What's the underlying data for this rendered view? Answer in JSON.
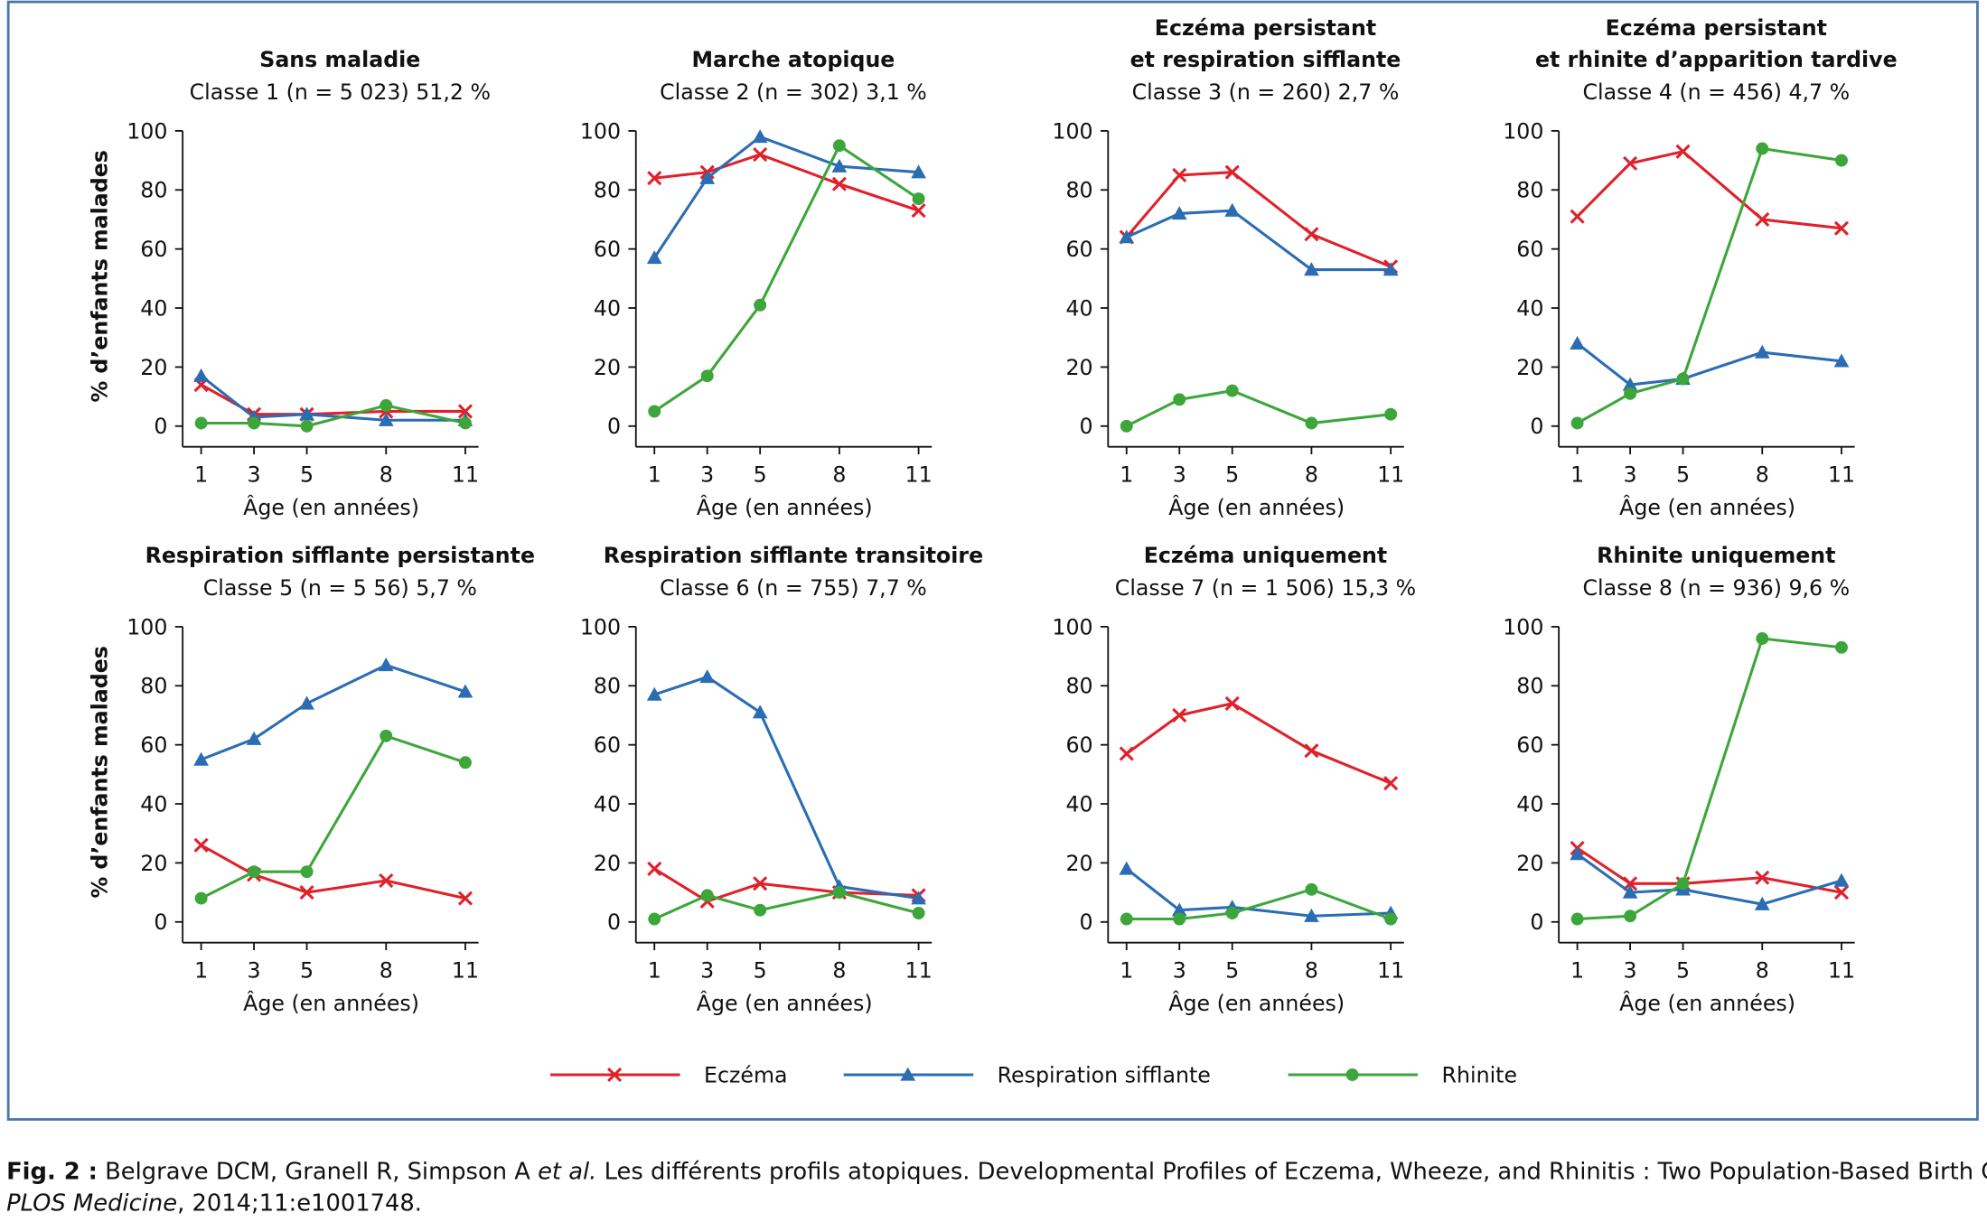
{
  "chart_data": [
    {
      "type": "line",
      "title": [
        "Sans maladie"
      ],
      "subtitle": "Classe 1 (n = 5 023) 51,2 %",
      "x": [
        1,
        3,
        5,
        8,
        11
      ],
      "xticks": [
        1,
        3,
        5,
        8,
        11
      ],
      "xlim": [
        0.3,
        11.5
      ],
      "ylim": [
        -7,
        100
      ],
      "yticks": [
        0,
        20,
        40,
        60,
        80,
        100
      ],
      "xlabel": "Âge (en années)",
      "ylabel": "% d’enfants malades",
      "series": [
        {
          "name": "Eczéma",
          "color": "#e0202a",
          "marker": "x",
          "values": [
            14,
            4,
            4,
            5,
            5
          ]
        },
        {
          "name": "Respiration sifflante",
          "color": "#2a6db3",
          "marker": "triangle",
          "values": [
            17,
            3,
            4,
            2,
            2
          ]
        },
        {
          "name": "Rhinite",
          "color": "#3da63a",
          "marker": "circle",
          "values": [
            1,
            1,
            0,
            7,
            1
          ]
        }
      ]
    },
    {
      "type": "line",
      "title": [
        "Marche atopique"
      ],
      "subtitle": "Classe 2 (n = 302) 3,1 %",
      "x": [
        1,
        3,
        5,
        8,
        11
      ],
      "xticks": [
        1,
        3,
        5,
        8,
        11
      ],
      "xlim": [
        0.3,
        11.5
      ],
      "ylim": [
        -7,
        100
      ],
      "yticks": [
        0,
        20,
        40,
        60,
        80,
        100
      ],
      "xlabel": "Âge (en années)",
      "series": [
        {
          "color": "#e0202a",
          "marker": "x",
          "values": [
            84,
            86,
            92,
            82,
            73
          ]
        },
        {
          "color": "#2a6db3",
          "marker": "triangle",
          "values": [
            57,
            84,
            98,
            88,
            86
          ]
        },
        {
          "color": "#3da63a",
          "marker": "circle",
          "values": [
            5,
            17,
            41,
            95,
            77
          ]
        }
      ]
    },
    {
      "type": "line",
      "title": [
        "Eczéma persistant",
        "et respiration sifflante"
      ],
      "subtitle": "Classe 3 (n = 260) 2,7 %",
      "x": [
        1,
        3,
        5,
        8,
        11
      ],
      "xticks": [
        1,
        3,
        5,
        8,
        11
      ],
      "xlim": [
        0.3,
        11.5
      ],
      "ylim": [
        -7,
        100
      ],
      "yticks": [
        0,
        20,
        40,
        60,
        80,
        100
      ],
      "xlabel": "Âge (en années)",
      "series": [
        {
          "color": "#e0202a",
          "marker": "x",
          "values": [
            64,
            85,
            86,
            65,
            54
          ]
        },
        {
          "color": "#2a6db3",
          "marker": "triangle",
          "values": [
            64,
            72,
            73,
            53,
            53
          ]
        },
        {
          "color": "#3da63a",
          "marker": "circle",
          "values": [
            0,
            9,
            12,
            1,
            4
          ]
        }
      ]
    },
    {
      "type": "line",
      "title": [
        "Eczéma persistant",
        "et rhinite d’apparition tardive"
      ],
      "subtitle": "Classe 4 (n = 456) 4,7 %",
      "x": [
        1,
        3,
        5,
        8,
        11
      ],
      "xticks": [
        1,
        3,
        5,
        8,
        11
      ],
      "xlim": [
        0.3,
        11.5
      ],
      "ylim": [
        -7,
        100
      ],
      "yticks": [
        0,
        20,
        40,
        60,
        80,
        100
      ],
      "xlabel": "Âge (en années)",
      "series": [
        {
          "color": "#e0202a",
          "marker": "x",
          "values": [
            71,
            89,
            93,
            70,
            67
          ]
        },
        {
          "color": "#2a6db3",
          "marker": "triangle",
          "values": [
            28,
            14,
            16,
            25,
            22
          ]
        },
        {
          "color": "#3da63a",
          "marker": "circle",
          "values": [
            1,
            11,
            16,
            94,
            90
          ]
        }
      ]
    },
    {
      "type": "line",
      "title": [
        "Respiration sifflante persistante"
      ],
      "subtitle": "Classe 5 (n = 5 56) 5,7 %",
      "x": [
        1,
        3,
        5,
        8,
        11
      ],
      "xticks": [
        1,
        3,
        5,
        8,
        11
      ],
      "xlim": [
        0.3,
        11.5
      ],
      "ylim": [
        -7,
        100
      ],
      "yticks": [
        0,
        20,
        40,
        60,
        80,
        100
      ],
      "xlabel": "Âge (en années)",
      "ylabel": "% d’enfants malades",
      "series": [
        {
          "color": "#e0202a",
          "marker": "x",
          "values": [
            26,
            16,
            10,
            14,
            8
          ]
        },
        {
          "color": "#2a6db3",
          "marker": "triangle",
          "values": [
            55,
            62,
            74,
            87,
            78
          ]
        },
        {
          "color": "#3da63a",
          "marker": "circle",
          "values": [
            8,
            17,
            17,
            63,
            54
          ]
        }
      ]
    },
    {
      "type": "line",
      "title": [
        "Respiration sifflante transitoire"
      ],
      "subtitle": "Classe 6 (n = 755) 7,7 %",
      "x": [
        1,
        3,
        5,
        8,
        11
      ],
      "xticks": [
        1,
        3,
        5,
        8,
        11
      ],
      "xlim": [
        0.3,
        11.5
      ],
      "ylim": [
        -7,
        100
      ],
      "yticks": [
        0,
        20,
        40,
        60,
        80,
        100
      ],
      "xlabel": "Âge (en années)",
      "series": [
        {
          "color": "#e0202a",
          "marker": "x",
          "values": [
            18,
            7,
            13,
            10,
            9
          ]
        },
        {
          "color": "#2a6db3",
          "marker": "triangle",
          "values": [
            77,
            83,
            71,
            12,
            8
          ]
        },
        {
          "color": "#3da63a",
          "marker": "circle",
          "values": [
            1,
            9,
            4,
            10,
            3
          ]
        }
      ]
    },
    {
      "type": "line",
      "title": [
        "Eczéma uniquement"
      ],
      "subtitle": "Classe 7 (n = 1 506) 15,3 %",
      "x": [
        1,
        3,
        5,
        8,
        11
      ],
      "xticks": [
        1,
        3,
        5,
        8,
        11
      ],
      "xlim": [
        0.3,
        11.5
      ],
      "ylim": [
        -7,
        100
      ],
      "yticks": [
        0,
        20,
        40,
        60,
        80,
        100
      ],
      "xlabel": "Âge (en années)",
      "series": [
        {
          "color": "#e0202a",
          "marker": "x",
          "values": [
            57,
            70,
            74,
            58,
            47
          ]
        },
        {
          "color": "#2a6db3",
          "marker": "triangle",
          "values": [
            18,
            4,
            5,
            2,
            3
          ]
        },
        {
          "color": "#3da63a",
          "marker": "circle",
          "values": [
            1,
            1,
            3,
            11,
            1
          ]
        }
      ]
    },
    {
      "type": "line",
      "title": [
        "Rhinite uniquement"
      ],
      "subtitle": "Classe 8 (n = 936) 9,6 %",
      "x": [
        1,
        3,
        5,
        8,
        11
      ],
      "xticks": [
        1,
        3,
        5,
        8,
        11
      ],
      "xlim": [
        0.3,
        11.5
      ],
      "ylim": [
        -7,
        100
      ],
      "yticks": [
        0,
        20,
        40,
        60,
        80,
        100
      ],
      "xlabel": "Âge (en années)",
      "series": [
        {
          "color": "#e0202a",
          "marker": "x",
          "values": [
            25,
            13,
            13,
            15,
            10
          ]
        },
        {
          "color": "#2a6db3",
          "marker": "triangle",
          "values": [
            23,
            10,
            11,
            6,
            14
          ]
        },
        {
          "color": "#3da63a",
          "marker": "circle",
          "values": [
            1,
            2,
            13,
            96,
            93
          ]
        }
      ]
    }
  ],
  "caption": {
    "label": "Fig. 2 :",
    "parts": [
      " Belgrave DCM, Granell R, Simpson A ",
      "et al.",
      " Les différents profils atopiques. Developmental Profiles of Eczema, Wheeze, and Rhinitis : Two Population-Based Birth Cohort Studies."
    ],
    "journal": "PLOS Medicine",
    "ref": ", 2014;11:e1001748."
  }
}
